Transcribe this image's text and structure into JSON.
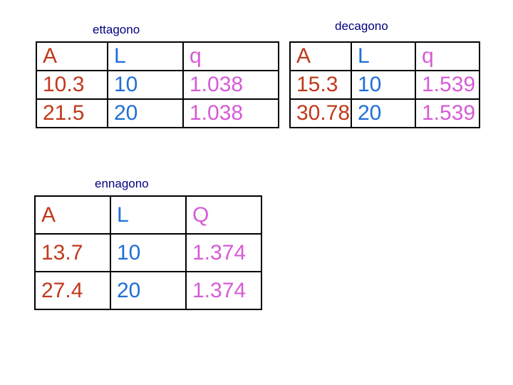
{
  "colors": {
    "caption": "#000080",
    "column_A": "#c0391b",
    "column_L": "#1f6fd6",
    "column_q": "#d65bd6",
    "border": "#000000"
  },
  "tables": {
    "ettagono": {
      "caption": "ettagono",
      "header": [
        "A",
        "L",
        "q"
      ],
      "rows": [
        [
          "10.3",
          "10",
          "1.038"
        ],
        [
          "21.5",
          "20",
          "1.038"
        ]
      ]
    },
    "decagono": {
      "caption": "decagono",
      "header": [
        "A",
        "L",
        "q"
      ],
      "rows": [
        [
          "15.3",
          "10",
          "1.539"
        ],
        [
          "30.78",
          "20",
          "1.539"
        ]
      ]
    },
    "ennagono": {
      "caption": "ennagono",
      "header": [
        "A",
        "L",
        "Q"
      ],
      "rows": [
        [
          "13.7",
          "10",
          "1.374"
        ],
        [
          "27.4",
          "20",
          "1.374"
        ]
      ]
    }
  }
}
